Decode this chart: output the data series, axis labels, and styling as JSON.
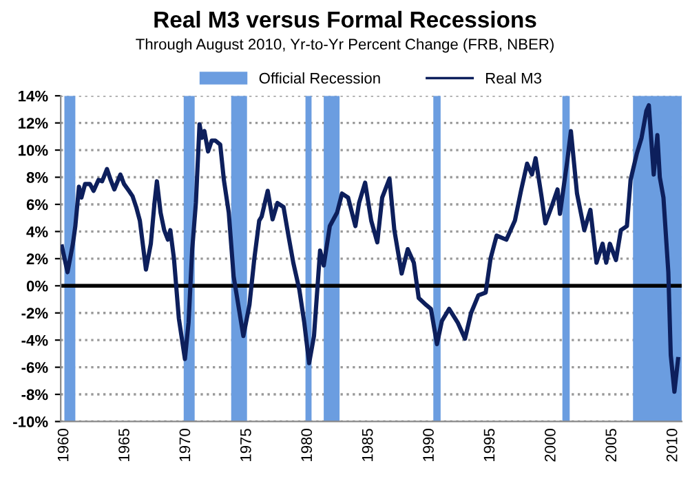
{
  "chart_data": {
    "type": "line",
    "title": "Real M3 versus Formal Recessions",
    "subtitle": "Through August 2010, Yr-to-Yr Percent Change (FRB, NBER)",
    "x": [
      1959.8,
      1960.26,
      1960.7,
      1960.9,
      1961.2,
      1961.4,
      1961.7,
      1962.1,
      1962.4,
      1962.8,
      1963.1,
      1963.5,
      1963.8,
      1964.1,
      1964.6,
      1964.9,
      1965.3,
      1965.6,
      1965.9,
      1966.2,
      1966.7,
      1967.1,
      1967.4,
      1967.6,
      1967.9,
      1968.2,
      1968.5,
      1968.7,
      1969.0,
      1969.4,
      1969.9,
      1970.2,
      1970.5,
      1970.8,
      1971.1,
      1971.3,
      1971.5,
      1971.8,
      1972.1,
      1972.4,
      1972.8,
      1973.1,
      1973.5,
      1973.9,
      1974.7,
      1975.2,
      1975.6,
      1976.0,
      1976.2,
      1976.7,
      1977.1,
      1977.5,
      1978.0,
      1978.4,
      1978.8,
      1979.3,
      1979.7,
      1980.1,
      1980.5,
      1981.0,
      1981.3,
      1981.8,
      1982.4,
      1982.8,
      1983.3,
      1983.9,
      1984.2,
      1984.7,
      1985.2,
      1985.7,
      1986.1,
      1986.7,
      1987.1,
      1987.7,
      1988.2,
      1988.7,
      1989.1,
      1989.7,
      1990.1,
      1990.6,
      1991.0,
      1991.6,
      1992.3,
      1992.9,
      1993.4,
      1994.0,
      1994.6,
      1995.0,
      1995.5,
      1996.3,
      1997.0,
      1997.5,
      1998.0,
      1998.4,
      1998.7,
      1999.2,
      1999.5,
      2000.0,
      2000.5,
      2000.7,
      2001.3,
      2001.6,
      2002.1,
      2002.7,
      2003.2,
      2003.7,
      2004.2,
      2004.5,
      2004.8,
      2005.3,
      2005.7,
      2006.2,
      2006.5,
      2007.0,
      2007.4,
      2007.8,
      2008.0,
      2008.4,
      2008.7,
      2008.9,
      2009.2,
      2009.6,
      2009.8,
      2010.1,
      2010.4
    ],
    "series": [
      {
        "name": "Real M3",
        "color": "#0d1f5c",
        "values": [
          2.9,
          1.0,
          3.1,
          4.4,
          7.3,
          6.5,
          7.5,
          7.5,
          7.0,
          7.8,
          7.7,
          8.6,
          7.8,
          7.1,
          8.2,
          7.5,
          7.0,
          6.6,
          5.8,
          4.8,
          1.2,
          3.1,
          6.1,
          7.7,
          5.4,
          4.1,
          3.4,
          4.1,
          2.0,
          -2.4,
          -5.4,
          -2.7,
          2.7,
          6.1,
          11.9,
          10.9,
          11.4,
          9.9,
          10.7,
          10.7,
          10.4,
          7.8,
          5.4,
          0.7,
          -3.7,
          -1.4,
          2.0,
          4.8,
          5.1,
          7.0,
          4.9,
          6.1,
          5.8,
          3.7,
          1.7,
          -0.3,
          -2.7,
          -5.7,
          -3.7,
          2.6,
          1.5,
          4.4,
          5.4,
          6.8,
          6.5,
          4.4,
          6.1,
          7.6,
          4.8,
          3.2,
          6.5,
          7.9,
          4.1,
          0.9,
          2.7,
          1.7,
          -0.9,
          -1.4,
          -1.7,
          -4.3,
          -2.6,
          -1.7,
          -2.7,
          -3.9,
          -2.0,
          -0.7,
          -0.5,
          2.0,
          3.7,
          3.4,
          4.8,
          7.0,
          9.0,
          8.2,
          9.4,
          6.5,
          4.6,
          5.8,
          7.1,
          5.3,
          9.2,
          11.4,
          6.8,
          4.1,
          5.6,
          1.7,
          3.1,
          1.7,
          3.1,
          1.9,
          4.1,
          4.4,
          7.8,
          9.7,
          10.9,
          12.9,
          13.3,
          8.2,
          11.1,
          8.0,
          6.5,
          1.0,
          -5.1,
          -7.8,
          -5.4
        ]
      }
    ],
    "xlim": [
      1959.7,
      2010.7
    ],
    "xticks": [
      1960,
      1965,
      1970,
      1975,
      1980,
      1985,
      1990,
      1995,
      2000,
      2005,
      2010
    ],
    "ylim": [
      -10,
      14
    ],
    "yticks": [
      {
        "value": -10,
        "label": "-10%"
      },
      {
        "value": -8,
        "label": "-8%"
      },
      {
        "value": -6,
        "label": "-6%"
      },
      {
        "value": -4,
        "label": "-4%"
      },
      {
        "value": -2,
        "label": "-2%"
      },
      {
        "value": 0,
        "label": "0%"
      },
      {
        "value": 2,
        "label": "2%"
      },
      {
        "value": 4,
        "label": "4%"
      },
      {
        "value": 6,
        "label": "6%"
      },
      {
        "value": 8,
        "label": "8%"
      },
      {
        "value": 10,
        "label": "10%"
      },
      {
        "value": 12,
        "label": "12%"
      },
      {
        "value": 14,
        "label": "14%"
      }
    ],
    "bands": [
      {
        "axis": "x",
        "from": 1960.0,
        "to": 1960.9,
        "label": "Official Recession",
        "color": "#6b9de0"
      },
      {
        "axis": "x",
        "from": 1969.8,
        "to": 1970.7,
        "color": "#6b9de0"
      },
      {
        "axis": "x",
        "from": 1973.7,
        "to": 1975.0,
        "color": "#6b9de0"
      },
      {
        "axis": "x",
        "from": 1979.8,
        "to": 1980.3,
        "color": "#6b9de0"
      },
      {
        "axis": "x",
        "from": 1981.3,
        "to": 1982.6,
        "color": "#6b9de0"
      },
      {
        "axis": "x",
        "from": 1990.3,
        "to": 1990.9,
        "color": "#6b9de0"
      },
      {
        "axis": "x",
        "from": 2000.9,
        "to": 2001.5,
        "color": "#6b9de0"
      },
      {
        "axis": "x",
        "from": 2006.7,
        "to": 2010.7,
        "color": "#6b9de0"
      }
    ],
    "ref_lines": [
      {
        "axis": "y",
        "value": 0,
        "color": "#000000",
        "line_style": "solid"
      }
    ],
    "grid": "y",
    "legend": "top",
    "line_style": "solid",
    "marker": "none"
  }
}
